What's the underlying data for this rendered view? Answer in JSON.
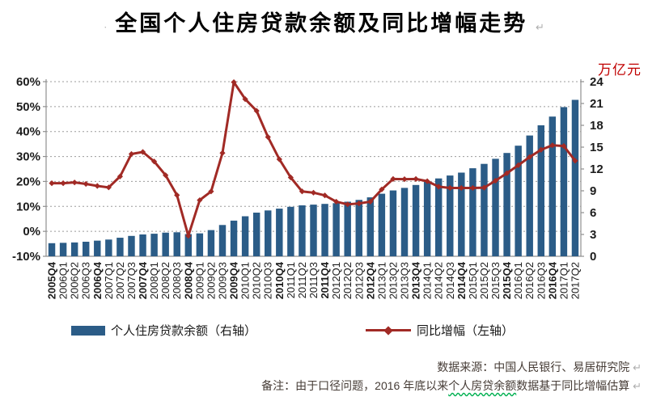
{
  "decorations": {
    "title_bullet": "·",
    "return_mark": "↵"
  },
  "notes": {
    "source": "数据来源：中国人民银行、易居研究院",
    "remark_prefix": "备注：由于口径问题，2016 年底以来",
    "remark_underlined": "个人房贷余额",
    "remark_suffix": "数据基于同比增幅估算"
  },
  "chart_data": {
    "type": "bar+line combo",
    "title": "全国个人住房贷款余额及同比增幅走势",
    "categories": [
      "2005Q4",
      "2006Q1",
      "2006Q2",
      "2006Q3",
      "2006Q4",
      "2007Q1",
      "2007Q2",
      "2007Q3",
      "2007Q4",
      "2008Q1",
      "2008Q2",
      "2008Q3",
      "2008Q4",
      "2009Q1",
      "2009Q2",
      "2009Q3",
      "2009Q4",
      "2010Q1",
      "2010Q2",
      "2010Q3",
      "2010Q4",
      "2011Q1",
      "2011Q2",
      "2011Q3",
      "2011Q4",
      "2012Q1",
      "2012Q2",
      "2012Q3",
      "2012Q4",
      "2013Q1",
      "2013Q2",
      "2013Q3",
      "2013Q4",
      "2014Q1",
      "2014Q2",
      "2014Q3",
      "2014Q4",
      "2015Q1",
      "2015Q2",
      "2015Q3",
      "2015Q4",
      "2016Q1",
      "2016Q2",
      "2016Q3",
      "2016Q4",
      "2017Q1",
      "2017Q2"
    ],
    "series": [
      {
        "name": "个人住房贷款余额（右轴）",
        "type": "bar",
        "axis": "right",
        "color": "#2b5c87",
        "values": [
          1.8,
          1.85,
          1.9,
          2.0,
          2.15,
          2.3,
          2.55,
          2.8,
          3.0,
          3.1,
          3.25,
          3.3,
          3.05,
          3.15,
          3.6,
          4.3,
          4.9,
          5.5,
          6.0,
          6.3,
          6.55,
          6.8,
          7.0,
          7.1,
          7.2,
          7.3,
          7.5,
          7.75,
          8.1,
          8.6,
          9.05,
          9.4,
          9.8,
          10.25,
          10.7,
          11.1,
          11.5,
          12.1,
          12.7,
          13.4,
          14.2,
          15.2,
          16.6,
          18.0,
          19.2,
          20.5,
          21.5
        ]
      },
      {
        "name": "同比增幅（左轴）",
        "type": "line",
        "axis": "left",
        "color": "#a12a25",
        "values": [
          19.3,
          19.3,
          19.6,
          19.0,
          18.2,
          17.6,
          22.0,
          31.0,
          31.8,
          28.0,
          22.5,
          14.5,
          -1.8,
          12.5,
          16.0,
          31.4,
          59.8,
          53.0,
          48.3,
          37.8,
          28.9,
          21.6,
          16.0,
          15.5,
          14.4,
          11.9,
          10.8,
          11.2,
          11.9,
          16.8,
          21.0,
          20.9,
          21.0,
          20.1,
          17.9,
          17.4,
          17.4,
          17.4,
          17.5,
          20.3,
          23.3,
          26.5,
          29.8,
          32.7,
          34.5,
          34.2,
          28.3
        ]
      }
    ],
    "left_axis": {
      "min": -10,
      "max": 60,
      "step": 10,
      "tick_labels": [
        "60%",
        "50%",
        "40%",
        "30%",
        "20%",
        "10%",
        "0%",
        "-10%"
      ],
      "unit": "%"
    },
    "right_axis": {
      "min": 0,
      "max": 24,
      "step": 3,
      "tick_labels": [
        "24",
        "21",
        "18",
        "15",
        "12",
        "9",
        "6",
        "3",
        "0"
      ],
      "unit": "万亿元"
    },
    "grid": "horizontal-dotted",
    "legend_position": "bottom",
    "x_label_rotation": -90
  }
}
